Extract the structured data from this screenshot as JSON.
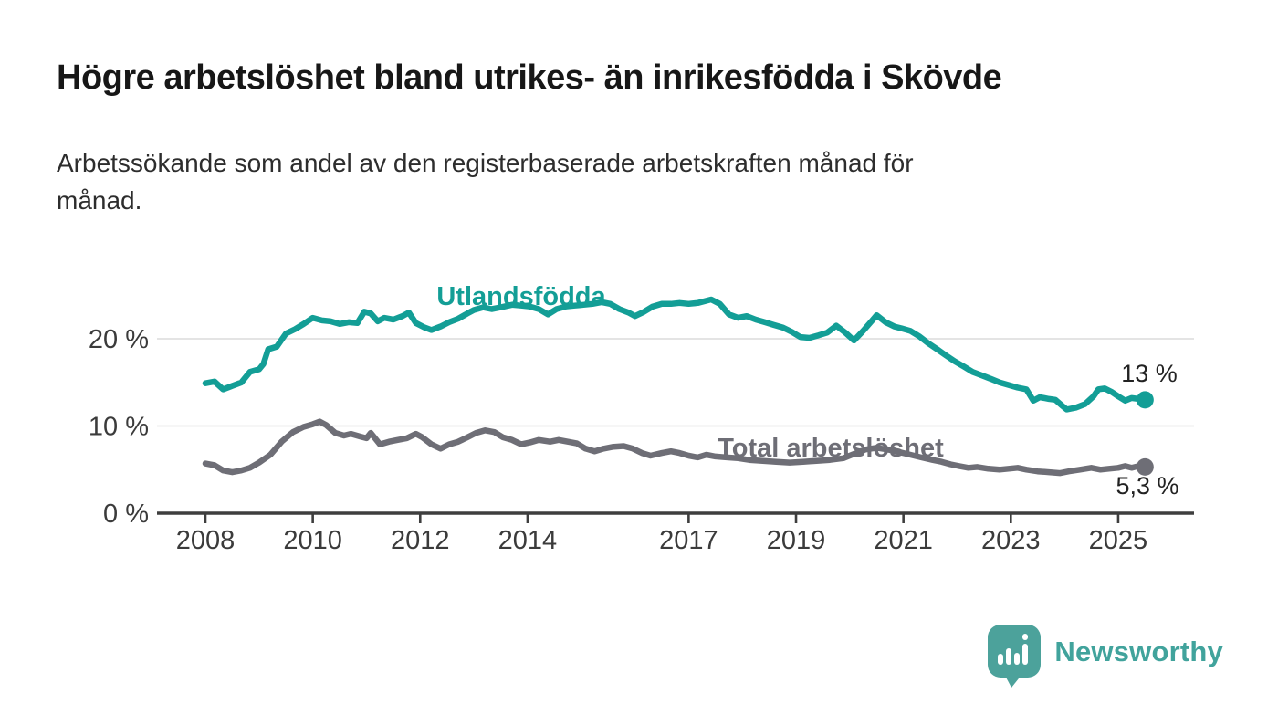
{
  "header": {
    "title": "Högre arbetslöshet bland utrikes- än inrikesfödda i Skövde",
    "subtitle": "Arbetssökande som andel av den registerbaserade arbetskraften månad för månad.",
    "subtitle_lines": [
      "Arbetssökande som andel av den registerbaserade arbetskraften månad för",
      "månad."
    ]
  },
  "chart_data": {
    "type": "line",
    "title": "Högre arbetslöshet bland utrikes- än inrikesfödda i Skövde",
    "subtitle": "Arbetssökande som andel av den registerbaserade arbetskraften månad för månad.",
    "xlabel": "",
    "ylabel": "",
    "xlim": [
      2007.9,
      2026.4
    ],
    "ylim": [
      0,
      27
    ],
    "grid": "horizontal",
    "legend_position": "inline-labels",
    "x_ticks": [
      2008,
      2010,
      2012,
      2014,
      2017,
      2019,
      2021,
      2023,
      2025
    ],
    "x_tick_labels": [
      "2008",
      "2010",
      "2012",
      "2014",
      "2017",
      "2019",
      "2021",
      "2023",
      "2025"
    ],
    "y_ticks": [
      0,
      10,
      20
    ],
    "y_tick_labels": [
      "0 %",
      "10 %",
      "20 %"
    ],
    "series": [
      {
        "name": "Utlandsfödda",
        "label_text": "Utlandsfödda",
        "end_label": "13 %",
        "end_value": 13,
        "color": "#139e96",
        "points": [
          [
            2008.0,
            14.9
          ],
          [
            2008.17,
            15.1
          ],
          [
            2008.33,
            14.2
          ],
          [
            2008.5,
            14.6
          ],
          [
            2008.67,
            15.0
          ],
          [
            2008.83,
            16.2
          ],
          [
            2009.0,
            16.5
          ],
          [
            2009.08,
            17.1
          ],
          [
            2009.17,
            18.8
          ],
          [
            2009.33,
            19.1
          ],
          [
            2009.5,
            20.6
          ],
          [
            2009.67,
            21.1
          ],
          [
            2009.83,
            21.7
          ],
          [
            2010.0,
            22.4
          ],
          [
            2010.17,
            22.1
          ],
          [
            2010.33,
            22.0
          ],
          [
            2010.5,
            21.7
          ],
          [
            2010.67,
            21.9
          ],
          [
            2010.83,
            21.8
          ],
          [
            2010.96,
            23.1
          ],
          [
            2011.08,
            22.9
          ],
          [
            2011.21,
            22.0
          ],
          [
            2011.33,
            22.4
          ],
          [
            2011.5,
            22.2
          ],
          [
            2011.67,
            22.6
          ],
          [
            2011.79,
            23.0
          ],
          [
            2011.92,
            21.8
          ],
          [
            2012.08,
            21.3
          ],
          [
            2012.21,
            21.0
          ],
          [
            2012.38,
            21.4
          ],
          [
            2012.54,
            21.9
          ],
          [
            2012.71,
            22.3
          ],
          [
            2012.88,
            22.9
          ],
          [
            2013.0,
            23.3
          ],
          [
            2013.17,
            23.6
          ],
          [
            2013.33,
            23.4
          ],
          [
            2013.5,
            23.6
          ],
          [
            2013.71,
            23.9
          ],
          [
            2013.88,
            23.8
          ],
          [
            2014.04,
            23.7
          ],
          [
            2014.21,
            23.4
          ],
          [
            2014.38,
            22.8
          ],
          [
            2014.54,
            23.4
          ],
          [
            2014.71,
            23.7
          ],
          [
            2014.88,
            23.8
          ],
          [
            2015.04,
            23.9
          ],
          [
            2015.21,
            24.0
          ],
          [
            2015.38,
            24.2
          ],
          [
            2015.54,
            24.0
          ],
          [
            2015.71,
            23.4
          ],
          [
            2015.88,
            23.0
          ],
          [
            2016.0,
            22.6
          ],
          [
            2016.17,
            23.1
          ],
          [
            2016.33,
            23.7
          ],
          [
            2016.5,
            24.0
          ],
          [
            2016.67,
            24.0
          ],
          [
            2016.83,
            24.1
          ],
          [
            2017.0,
            24.0
          ],
          [
            2017.17,
            24.1
          ],
          [
            2017.42,
            24.5
          ],
          [
            2017.58,
            24.0
          ],
          [
            2017.75,
            22.8
          ],
          [
            2017.92,
            22.4
          ],
          [
            2018.08,
            22.6
          ],
          [
            2018.25,
            22.2
          ],
          [
            2018.42,
            21.9
          ],
          [
            2018.58,
            21.6
          ],
          [
            2018.75,
            21.3
          ],
          [
            2018.92,
            20.8
          ],
          [
            2019.08,
            20.2
          ],
          [
            2019.25,
            20.1
          ],
          [
            2019.42,
            20.4
          ],
          [
            2019.58,
            20.7
          ],
          [
            2019.75,
            21.5
          ],
          [
            2019.92,
            20.7
          ],
          [
            2020.08,
            19.8
          ],
          [
            2020.25,
            20.9
          ],
          [
            2020.42,
            22.1
          ],
          [
            2020.5,
            22.7
          ],
          [
            2020.67,
            21.9
          ],
          [
            2020.83,
            21.4
          ],
          [
            2020.96,
            21.2
          ],
          [
            2021.13,
            20.9
          ],
          [
            2021.29,
            20.3
          ],
          [
            2021.46,
            19.5
          ],
          [
            2021.63,
            18.8
          ],
          [
            2021.79,
            18.1
          ],
          [
            2021.96,
            17.4
          ],
          [
            2022.13,
            16.8
          ],
          [
            2022.29,
            16.2
          ],
          [
            2022.46,
            15.8
          ],
          [
            2022.63,
            15.4
          ],
          [
            2022.79,
            15.0
          ],
          [
            2022.96,
            14.7
          ],
          [
            2023.13,
            14.4
          ],
          [
            2023.29,
            14.2
          ],
          [
            2023.42,
            12.9
          ],
          [
            2023.54,
            13.3
          ],
          [
            2023.71,
            13.1
          ],
          [
            2023.83,
            13.0
          ],
          [
            2023.96,
            12.3
          ],
          [
            2024.04,
            11.9
          ],
          [
            2024.21,
            12.1
          ],
          [
            2024.38,
            12.5
          ],
          [
            2024.54,
            13.4
          ],
          [
            2024.63,
            14.2
          ],
          [
            2024.75,
            14.3
          ],
          [
            2024.88,
            13.9
          ],
          [
            2025.0,
            13.4
          ],
          [
            2025.13,
            12.9
          ],
          [
            2025.25,
            13.2
          ],
          [
            2025.38,
            13.1
          ],
          [
            2025.5,
            13.0
          ]
        ]
      },
      {
        "name": "Total arbetslöshet",
        "label_text": "Total arbetslöshet",
        "end_label": "5,3 %",
        "end_value": 5.3,
        "color": "#6e6e76",
        "points": [
          [
            2008.0,
            5.7
          ],
          [
            2008.17,
            5.5
          ],
          [
            2008.33,
            4.9
          ],
          [
            2008.5,
            4.7
          ],
          [
            2008.67,
            4.9
          ],
          [
            2008.83,
            5.2
          ],
          [
            2009.0,
            5.8
          ],
          [
            2009.21,
            6.7
          ],
          [
            2009.42,
            8.2
          ],
          [
            2009.63,
            9.3
          ],
          [
            2009.83,
            9.9
          ],
          [
            2010.0,
            10.2
          ],
          [
            2010.13,
            10.5
          ],
          [
            2010.25,
            10.1
          ],
          [
            2010.42,
            9.2
          ],
          [
            2010.58,
            8.9
          ],
          [
            2010.71,
            9.1
          ],
          [
            2010.88,
            8.8
          ],
          [
            2011.0,
            8.6
          ],
          [
            2011.08,
            9.2
          ],
          [
            2011.25,
            7.9
          ],
          [
            2011.42,
            8.2
          ],
          [
            2011.58,
            8.4
          ],
          [
            2011.75,
            8.6
          ],
          [
            2011.92,
            9.1
          ],
          [
            2012.04,
            8.7
          ],
          [
            2012.21,
            7.9
          ],
          [
            2012.38,
            7.4
          ],
          [
            2012.54,
            7.9
          ],
          [
            2012.71,
            8.2
          ],
          [
            2012.88,
            8.7
          ],
          [
            2013.04,
            9.2
          ],
          [
            2013.21,
            9.5
          ],
          [
            2013.38,
            9.3
          ],
          [
            2013.54,
            8.7
          ],
          [
            2013.71,
            8.4
          ],
          [
            2013.88,
            7.9
          ],
          [
            2014.04,
            8.1
          ],
          [
            2014.21,
            8.4
          ],
          [
            2014.42,
            8.2
          ],
          [
            2014.58,
            8.4
          ],
          [
            2014.75,
            8.2
          ],
          [
            2014.92,
            8.0
          ],
          [
            2015.08,
            7.4
          ],
          [
            2015.25,
            7.1
          ],
          [
            2015.42,
            7.4
          ],
          [
            2015.58,
            7.6
          ],
          [
            2015.79,
            7.7
          ],
          [
            2015.96,
            7.4
          ],
          [
            2016.13,
            6.9
          ],
          [
            2016.29,
            6.6
          ],
          [
            2016.5,
            6.9
          ],
          [
            2016.67,
            7.1
          ],
          [
            2016.83,
            6.9
          ],
          [
            2017.0,
            6.6
          ],
          [
            2017.17,
            6.4
          ],
          [
            2017.33,
            6.7
          ],
          [
            2017.5,
            6.5
          ],
          [
            2017.71,
            6.4
          ],
          [
            2017.92,
            6.3
          ],
          [
            2018.13,
            6.1
          ],
          [
            2018.38,
            6.0
          ],
          [
            2018.63,
            5.9
          ],
          [
            2018.88,
            5.8
          ],
          [
            2019.13,
            5.9
          ],
          [
            2019.38,
            6.0
          ],
          [
            2019.63,
            6.1
          ],
          [
            2019.88,
            6.3
          ],
          [
            2020.08,
            6.8
          ],
          [
            2020.29,
            7.3
          ],
          [
            2020.5,
            7.5
          ],
          [
            2020.71,
            7.3
          ],
          [
            2020.92,
            7.0
          ],
          [
            2021.13,
            6.7
          ],
          [
            2021.33,
            6.4
          ],
          [
            2021.54,
            6.1
          ],
          [
            2021.71,
            5.9
          ],
          [
            2021.88,
            5.6
          ],
          [
            2022.04,
            5.4
          ],
          [
            2022.21,
            5.2
          ],
          [
            2022.38,
            5.3
          ],
          [
            2022.58,
            5.1
          ],
          [
            2022.79,
            5.0
          ],
          [
            2022.96,
            5.1
          ],
          [
            2023.13,
            5.2
          ],
          [
            2023.29,
            5.0
          ],
          [
            2023.5,
            4.8
          ],
          [
            2023.71,
            4.7
          ],
          [
            2023.92,
            4.6
          ],
          [
            2024.08,
            4.8
          ],
          [
            2024.29,
            5.0
          ],
          [
            2024.5,
            5.2
          ],
          [
            2024.67,
            5.0
          ],
          [
            2024.83,
            5.1
          ],
          [
            2025.0,
            5.2
          ],
          [
            2025.13,
            5.4
          ],
          [
            2025.25,
            5.2
          ],
          [
            2025.38,
            5.4
          ],
          [
            2025.5,
            5.3
          ]
        ]
      }
    ]
  },
  "footer": {
    "brand": "Newsworthy",
    "logo_icon": "newsworthy-speech-bubble-chart-icon",
    "logo_color": "#4ca29b"
  }
}
